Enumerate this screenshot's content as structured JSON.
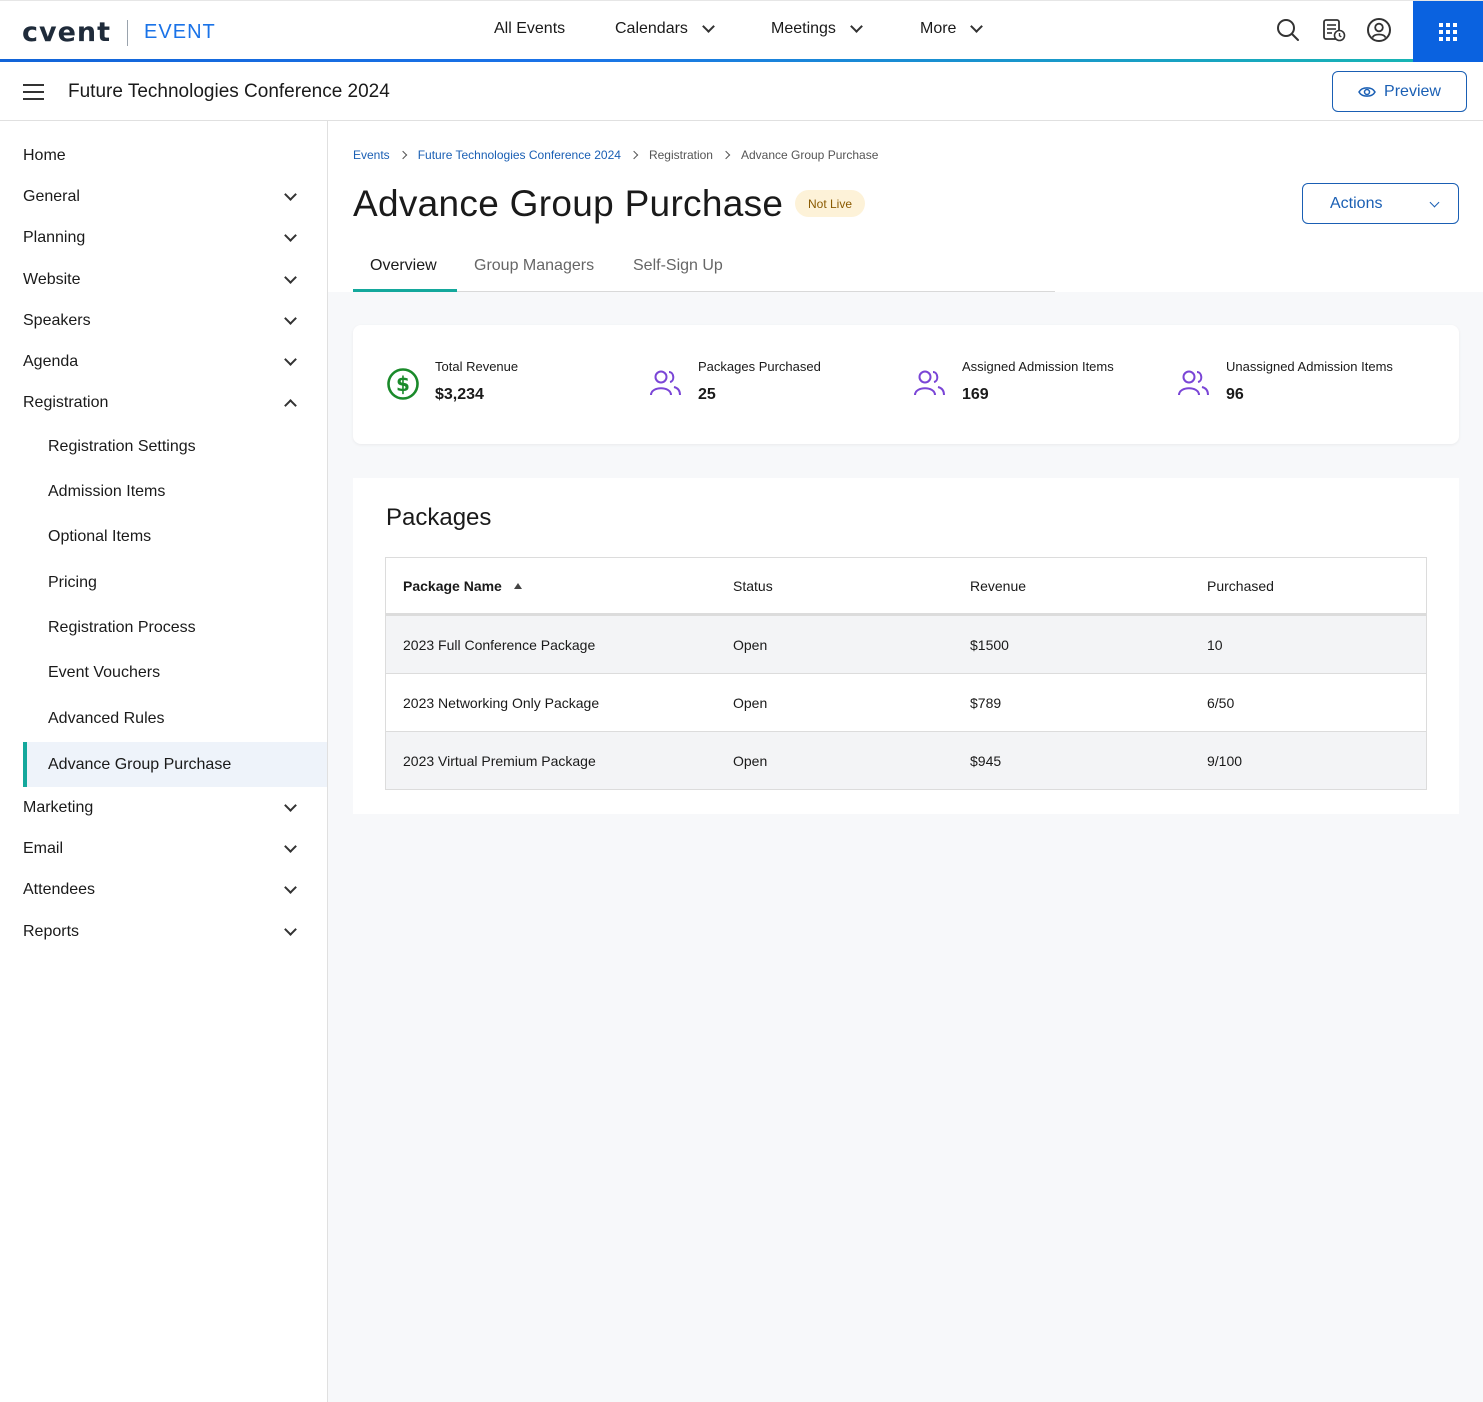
{
  "topnav": {
    "logo": "cvent",
    "product": "EVENT",
    "items": [
      {
        "label": "All Events",
        "dropdown": false
      },
      {
        "label": "Calendars",
        "dropdown": true
      },
      {
        "label": "Meetings",
        "dropdown": true
      },
      {
        "label": "More",
        "dropdown": true
      }
    ],
    "icons": [
      "search-icon",
      "event-schedule-icon",
      "user-profile-icon",
      "app-grid-icon"
    ]
  },
  "event_header": {
    "title": "Future Technologies Conference 2024",
    "preview_label": "Preview"
  },
  "sidebar": {
    "items": [
      {
        "label": "Home",
        "expandable": false
      },
      {
        "label": "General",
        "expandable": true
      },
      {
        "label": "Planning",
        "expandable": true
      },
      {
        "label": "Website",
        "expandable": true
      },
      {
        "label": "Speakers",
        "expandable": true
      },
      {
        "label": "Agenda",
        "expandable": true
      },
      {
        "label": "Registration",
        "expandable": true,
        "expanded": true
      }
    ],
    "registration_children": [
      "Registration Settings",
      "Admission Items",
      "Optional Items",
      "Pricing",
      "Registration Process",
      "Event Vouchers",
      "Advanced Rules",
      "Advance Group Purchase"
    ],
    "active_child": "Advance Group Purchase",
    "items_after": [
      {
        "label": "Marketing",
        "expandable": true
      },
      {
        "label": "Email",
        "expandable": true
      },
      {
        "label": "Attendees",
        "expandable": true
      },
      {
        "label": "Reports",
        "expandable": true
      }
    ]
  },
  "breadcrumb": [
    "Events",
    "Future Technologies Conference 2024",
    "Registration",
    "Advance Group Purchase"
  ],
  "page": {
    "title": "Advance Group Purchase",
    "status_badge": "Not Live",
    "actions_label": "Actions"
  },
  "tabs": [
    {
      "label": "Overview",
      "active": true
    },
    {
      "label": "Group Managers",
      "active": false
    },
    {
      "label": "Self-Sign Up",
      "active": false
    }
  ],
  "stats": [
    {
      "label": "Total Revenue",
      "value": "$3,234",
      "icon": "dollar-circle-icon",
      "color": "#1a8a2a"
    },
    {
      "label": "Packages Purchased",
      "value": "25",
      "icon": "users-icon",
      "color": "#7a45d6"
    },
    {
      "label": "Assigned Admission Items",
      "value": "169",
      "icon": "users-icon",
      "color": "#7a45d6"
    },
    {
      "label": "Unassigned Admission Items",
      "value": "96",
      "icon": "users-icon",
      "color": "#7a45d6"
    }
  ],
  "packages": {
    "title": "Packages",
    "columns": [
      "Package Name",
      "Status",
      "Revenue",
      "Purchased"
    ],
    "sort_column": "Package Name",
    "sort_direction": "ascending",
    "rows": [
      {
        "name": "2023 Full Conference Package",
        "status": "Open",
        "revenue": "$1500",
        "purchased": "10"
      },
      {
        "name": "2023 Networking Only Package",
        "status": "Open",
        "revenue": "$789",
        "purchased": "6/50"
      },
      {
        "name": "2023 Virtual Premium Package",
        "status": "Open",
        "revenue": "$945",
        "purchased": "9/100"
      }
    ]
  },
  "colors": {
    "brand_blue": "#1a73e8",
    "accent_teal": "#14a89c",
    "apps_button": "#0a62e0",
    "badge_bg": "#fdf2d8"
  }
}
